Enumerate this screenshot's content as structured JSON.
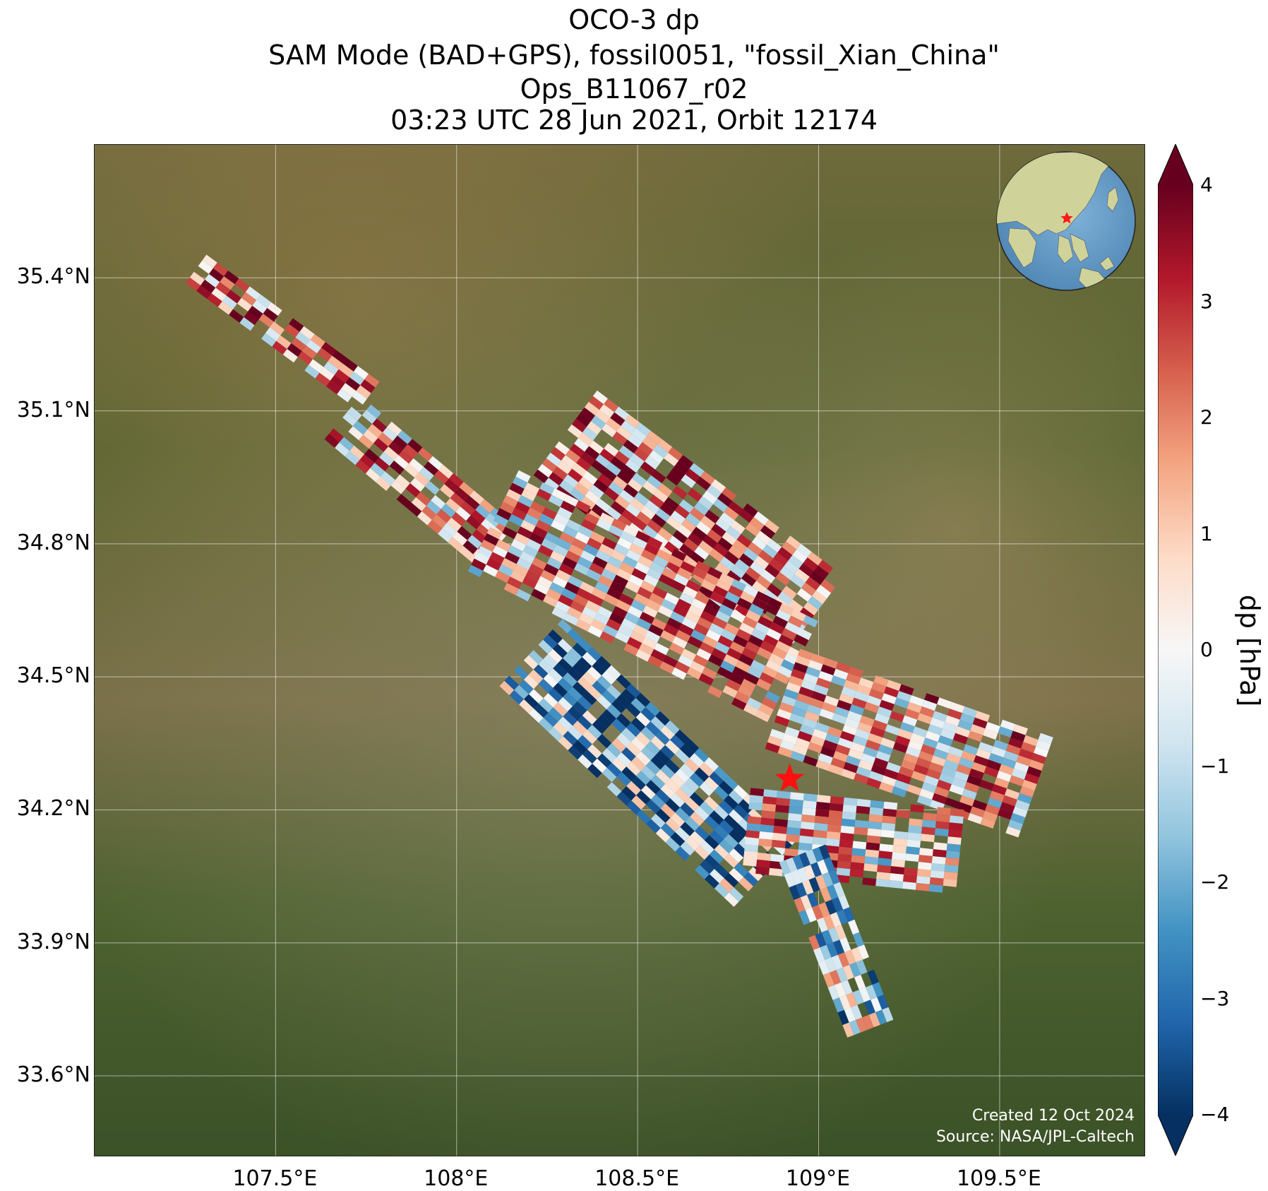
{
  "title": {
    "line1": "OCO-3 dp",
    "line2": "SAM Mode (BAD+GPS), fossil0051, \"fossil_Xian_China\"",
    "line3": "Ops_B11067_r02",
    "line4": "03:23 UTC 28 Jun 2021, Orbit 12174"
  },
  "map": {
    "extent": {
      "lon": [
        107.0,
        109.9
      ],
      "lat": [
        33.42,
        35.7
      ]
    },
    "lat_ticks": [
      "35.4°N",
      "35.1°N",
      "34.8°N",
      "34.5°N",
      "34.2°N",
      "33.9°N",
      "33.6°N"
    ],
    "lat_values": [
      35.4,
      35.1,
      34.8,
      34.5,
      34.2,
      33.9,
      33.6
    ],
    "lon_ticks": [
      "107.5°E",
      "108°E",
      "108.5°E",
      "109°E",
      "109.5°E"
    ],
    "lon_values": [
      107.5,
      108.0,
      108.5,
      109.0,
      109.5
    ],
    "grid": true,
    "target_marker": {
      "lon": 108.92,
      "lat": 34.27,
      "symbol": "red-star"
    },
    "basemap": "satellite imagery",
    "swath_segments": [
      {
        "from": [
          107.28,
          35.42
        ],
        "to": [
          107.78,
          35.12
        ],
        "halfwidth": 0.04,
        "bias": 1.8
      },
      {
        "from": [
          107.68,
          35.08
        ],
        "to": [
          108.12,
          34.78
        ],
        "halfwidth": 0.07,
        "bias": 1.2
      },
      {
        "from": [
          108.3,
          35.05
        ],
        "to": [
          109.0,
          34.62
        ],
        "halfwidth": 0.12,
        "bias": 1.6
      },
      {
        "from": [
          108.1,
          34.85
        ],
        "to": [
          108.95,
          34.5
        ],
        "halfwidth": 0.13,
        "bias": 1.0
      },
      {
        "from": [
          108.2,
          34.55
        ],
        "to": [
          108.85,
          34.05
        ],
        "halfwidth": 0.11,
        "bias": -1.8
      },
      {
        "from": [
          108.9,
          34.45
        ],
        "to": [
          109.6,
          34.25
        ],
        "halfwidth": 0.12,
        "bias": 1.0
      },
      {
        "from": [
          108.8,
          34.15
        ],
        "to": [
          109.4,
          34.1
        ],
        "halfwidth": 0.1,
        "bias": 0.8
      },
      {
        "from": [
          108.95,
          34.1
        ],
        "to": [
          109.15,
          33.68
        ],
        "halfwidth": 0.06,
        "bias": -0.8
      }
    ]
  },
  "colorbar": {
    "label": "dp [hPa]",
    "min": -4,
    "max": 4,
    "cmap": "RdBu_r",
    "extend": "both",
    "ticks": [
      "4",
      "3",
      "2",
      "1",
      "0",
      "−1",
      "−2",
      "−3",
      "−4"
    ],
    "tick_values": [
      4,
      3,
      2,
      1,
      0,
      -1,
      -2,
      -3,
      -4
    ],
    "colors": [
      "#053061",
      "#2166ac",
      "#4393c3",
      "#92c5de",
      "#d1e5f0",
      "#f7f7f7",
      "#fddbc7",
      "#f4a582",
      "#d6604d",
      "#b2182b",
      "#67001f"
    ]
  },
  "credits": {
    "created": "Created 12 Oct 2024",
    "source": "Source: NASA/JPL-Caltech"
  }
}
